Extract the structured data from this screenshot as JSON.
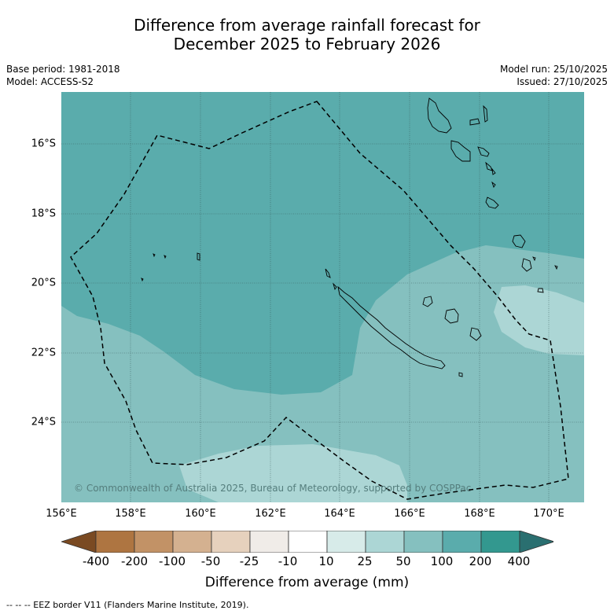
{
  "title": {
    "line1": "Difference from average rainfall forecast for",
    "line2": "December 2025 to February 2026"
  },
  "meta": {
    "base_period": "Base period: 1981-2018",
    "model": "Model: ACCESS-S2",
    "model_run": "Model run: 25/10/2025",
    "issued": "Issued: 27/10/2025"
  },
  "map": {
    "lat_labels": [
      "16°S",
      "18°S",
      "20°S",
      "22°S",
      "24°S"
    ],
    "lon_labels": [
      "156°E",
      "158°E",
      "160°E",
      "162°E",
      "164°E",
      "166°E",
      "168°E",
      "170°E"
    ],
    "copyright": "© Commonwealth of Australia 2025, Bureau of Meteorology, supported by COSPPac",
    "colors": {
      "band_50_100": "#85c0bf",
      "band_100_200": "#5aacac",
      "band_25_50": "#acd6d5"
    }
  },
  "legend": {
    "labels": [
      "-400",
      "-200",
      "-100",
      "-50",
      "-25",
      "-10",
      "10",
      "25",
      "50",
      "100",
      "200",
      "400"
    ],
    "colors": [
      "#7a4a22",
      "#ae7541",
      "#c29266",
      "#d4b190",
      "#e6d1bd",
      "#f0ece8",
      "#ffffff",
      "#d7ebe9",
      "#acd6d5",
      "#85c0bf",
      "#5aacac",
      "#33988f",
      "#2a6f70"
    ],
    "title": "Difference from average (mm)"
  },
  "footnote": "--  --  -- EEZ border V11 (Flanders Marine Institute, 2019)."
}
